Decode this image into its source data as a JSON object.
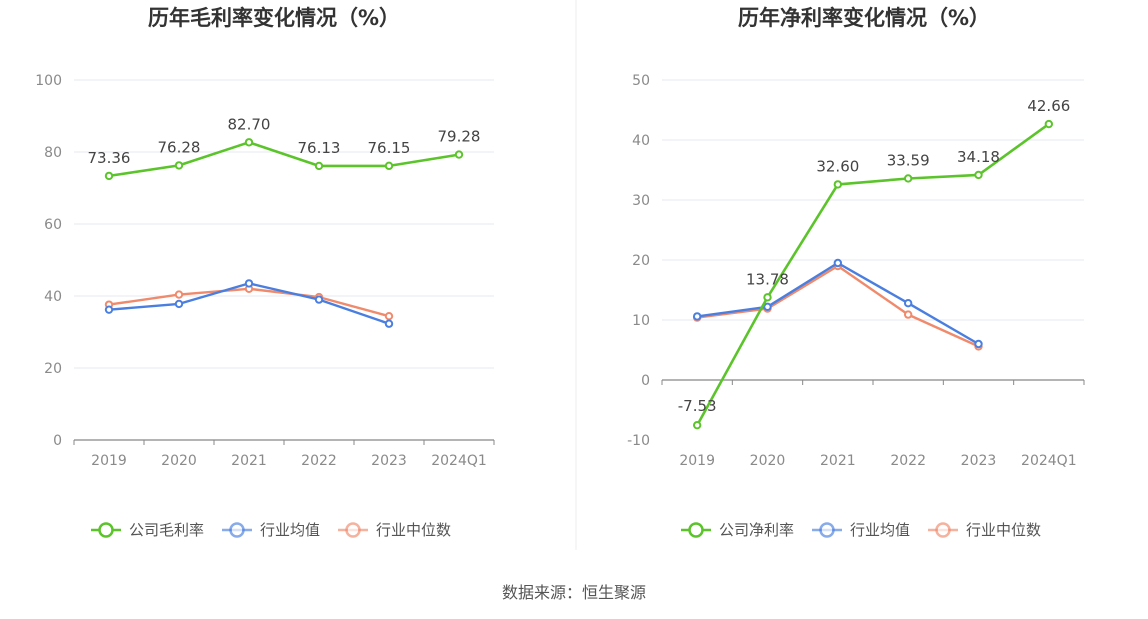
{
  "source_label": "数据来源：恒生聚源",
  "colors": {
    "company": "#5cc42b",
    "avg": "#4a7fe0",
    "median": "#f08a6c"
  },
  "chart_data": [
    {
      "type": "line",
      "title": "历年毛利率变化情况（%）",
      "categories": [
        "2019",
        "2020",
        "2021",
        "2022",
        "2023",
        "2024Q1"
      ],
      "ylim": [
        0,
        100
      ],
      "yticks": [
        0,
        20,
        40,
        60,
        80,
        100
      ],
      "series": [
        {
          "name": "公司毛利率",
          "values": [
            73.36,
            76.28,
            82.7,
            76.13,
            76.15,
            79.28
          ],
          "labels": [
            "73.36",
            "76.28",
            "82.70",
            "76.13",
            "76.15",
            "79.28"
          ],
          "color_key": "company"
        },
        {
          "name": "行业均值",
          "values": [
            36.2,
            37.8,
            43.5,
            39.0,
            32.3,
            null
          ],
          "color_key": "avg"
        },
        {
          "name": "行业中位数",
          "values": [
            37.6,
            40.4,
            42.0,
            39.7,
            34.4,
            null
          ],
          "color_key": "median"
        }
      ],
      "grid": true,
      "legend": "bottom"
    },
    {
      "type": "line",
      "title": "历年净利率变化情况（%）",
      "categories": [
        "2019",
        "2020",
        "2021",
        "2022",
        "2023",
        "2024Q1"
      ],
      "ylim": [
        -10,
        50
      ],
      "yticks": [
        -10,
        0,
        10,
        20,
        30,
        40,
        50
      ],
      "series": [
        {
          "name": "公司净利率",
          "values": [
            -7.53,
            13.78,
            32.6,
            33.59,
            34.18,
            42.66
          ],
          "labels": [
            "-7.53",
            "13.78",
            "32.60",
            "33.59",
            "34.18",
            "42.66"
          ],
          "color_key": "company"
        },
        {
          "name": "行业均值",
          "values": [
            10.6,
            12.2,
            19.5,
            12.8,
            6.0,
            null
          ],
          "color_key": "avg"
        },
        {
          "name": "行业中位数",
          "values": [
            10.4,
            11.9,
            19.0,
            10.9,
            5.6,
            null
          ],
          "color_key": "median"
        }
      ],
      "grid": true,
      "legend": "bottom"
    }
  ]
}
